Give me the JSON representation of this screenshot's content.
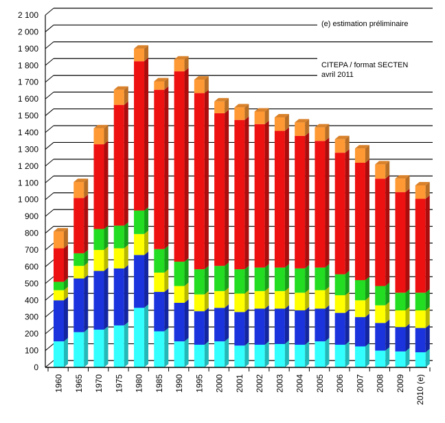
{
  "chart_data": {
    "type": "bar",
    "stacked": true,
    "categories": [
      "1960",
      "1965",
      "1970",
      "1975",
      "1980",
      "1985",
      "1990",
      "1995",
      "2000",
      "2001",
      "2002",
      "2003",
      "2004",
      "2005",
      "2006",
      "2007",
      "2008",
      "2009",
      "2010 (e)"
    ],
    "y_ticks": [
      "0",
      "100",
      "200",
      "300",
      "400",
      "500",
      "600",
      "700",
      "800",
      "900",
      "1 000",
      "1 100",
      "1 200",
      "1 300",
      "1 400",
      "1 500",
      "1 600",
      "1 700",
      "1 800",
      "1 900",
      "2 000",
      "2 100"
    ],
    "ylim": [
      0,
      2100
    ],
    "grid": true,
    "legend": "none",
    "annotations": {
      "estimate_note": "(e) estimation préliminaire",
      "source_line1": "CITEPA / format SECTEN",
      "source_line2": "avril 2011"
    },
    "series": [
      {
        "color": "#33ffff",
        "values": [
          155,
          210,
          225,
          250,
          355,
          215,
          155,
          135,
          155,
          130,
          135,
          140,
          135,
          155,
          135,
          125,
          100,
          95,
          90
        ]
      },
      {
        "color": "#1a33dd",
        "values": [
          245,
          320,
          350,
          340,
          315,
          235,
          230,
          200,
          200,
          200,
          215,
          210,
          205,
          195,
          190,
          175,
          165,
          145,
          145
        ]
      },
      {
        "color": "#ffff00",
        "values": [
          60,
          75,
          125,
          120,
          125,
          115,
          100,
          100,
          100,
          110,
          105,
          105,
          105,
          110,
          105,
          100,
          105,
          100,
          105
        ]
      },
      {
        "color": "#22dd22",
        "values": [
          50,
          75,
          125,
          135,
          140,
          140,
          145,
          150,
          150,
          145,
          140,
          140,
          145,
          135,
          125,
          120,
          115,
          105,
          105
        ]
      },
      {
        "color": "#ee1111",
        "values": [
          200,
          330,
          505,
          720,
          890,
          950,
          1135,
          1050,
          910,
          890,
          855,
          815,
          790,
          755,
          725,
          700,
          640,
          600,
          560
        ]
      },
      {
        "color": "#ff9933",
        "values": [
          100,
          95,
          95,
          90,
          75,
          50,
          70,
          80,
          70,
          75,
          75,
          80,
          80,
          80,
          80,
          85,
          85,
          80,
          80
        ]
      }
    ]
  }
}
